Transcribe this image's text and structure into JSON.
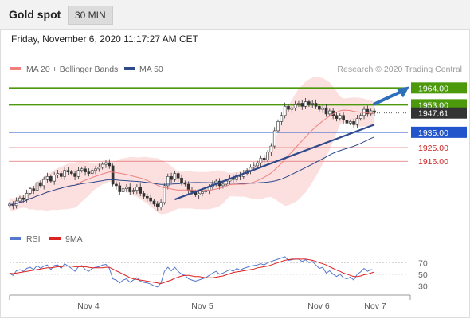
{
  "header": {
    "title": "Gold spot",
    "interval": "30 MIN"
  },
  "timestamp": "Friday, November 6, 2020 11:17:27 AM CET",
  "legend": {
    "ma20": {
      "label": "MA 20 + Bollinger Bands",
      "color": "#f08080"
    },
    "ma50": {
      "label": "MA 50",
      "color": "#2e4a8a"
    },
    "rsi": {
      "label": "RSI",
      "color": "#5577cc"
    },
    "rsi_ma": {
      "label": "9MA",
      "color": "#dd2222"
    }
  },
  "credit": "Research © 2020 Trading Central",
  "colors": {
    "resistance": "#4c9a0c",
    "pivot": "#2255cc",
    "support": "#e07070",
    "candle": "#333333",
    "band": "#fbd9d9",
    "current": "#333333"
  },
  "chart_data": [
    {
      "type": "candlestick",
      "title": "Gold spot",
      "x_ticks": [
        "Nov 4",
        "Nov 5",
        "Nov 6",
        "Nov 7"
      ],
      "ylim": [
        1878,
        1972
      ],
      "current_price": {
        "value": 1947.61,
        "label": "1947.61"
      },
      "levels": [
        {
          "value": 1964.0,
          "label": "1964.00",
          "kind": "resistance"
        },
        {
          "value": 1953.0,
          "label": "1953.00",
          "kind": "resistance"
        },
        {
          "value": 1935.0,
          "label": "1935.00",
          "kind": "pivot"
        },
        {
          "value": 1925.0,
          "label": "1925.00",
          "kind": "support"
        },
        {
          "value": 1916.0,
          "label": "1916.00",
          "kind": "support"
        }
      ],
      "close": [
        1888,
        1887,
        1890,
        1892,
        1891,
        1895,
        1898,
        1897,
        1902,
        1900,
        1904,
        1906,
        1903,
        1907,
        1908,
        1906,
        1910,
        1909,
        1908,
        1906,
        1910,
        1911,
        1909,
        1908,
        1910,
        1911,
        1912,
        1914,
        1915,
        1913,
        1901,
        1900,
        1896,
        1898,
        1899,
        1896,
        1897,
        1899,
        1895,
        1893,
        1892,
        1890,
        1888,
        1886,
        1889,
        1900,
        1906,
        1904,
        1908,
        1905,
        1902,
        1901,
        1897,
        1896,
        1894,
        1895,
        1896,
        1897,
        1899,
        1901,
        1903,
        1900,
        1901,
        1903,
        1905,
        1904,
        1907,
        1906,
        1908,
        1910,
        1912,
        1913,
        1915,
        1918,
        1917,
        1922,
        1926,
        1936,
        1942,
        1946,
        1952,
        1950,
        1951,
        1953,
        1954,
        1952,
        1955,
        1953,
        1954,
        1952,
        1950,
        1951,
        1947,
        1949,
        1946,
        1944,
        1946,
        1943,
        1941,
        1942,
        1940,
        1944,
        1946,
        1950,
        1947,
        1949,
        1948
      ]
    },
    {
      "type": "line",
      "title": "RSI",
      "x_ticks": [
        "Nov 4",
        "Nov 5",
        "Nov 6",
        "Nov 7"
      ],
      "yticks": [
        70,
        50,
        30
      ],
      "ylim": [
        25,
        80
      ],
      "series": [
        {
          "name": "RSI",
          "values": [
            52,
            48,
            56,
            58,
            55,
            60,
            62,
            58,
            65,
            60,
            64,
            66,
            58,
            65,
            66,
            60,
            68,
            64,
            60,
            55,
            63,
            65,
            58,
            55,
            60,
            62,
            63,
            66,
            67,
            60,
            42,
            40,
            35,
            40,
            42,
            36,
            40,
            44,
            38,
            36,
            35,
            33,
            30,
            28,
            35,
            55,
            62,
            56,
            62,
            55,
            50,
            48,
            42,
            40,
            38,
            40,
            42,
            44,
            48,
            52,
            55,
            50,
            52,
            55,
            58,
            55,
            60,
            57,
            60,
            62,
            64,
            65,
            66,
            68,
            66,
            70,
            72,
            74,
            76,
            78,
            80,
            74,
            75,
            76,
            76,
            72,
            75,
            70,
            72,
            66,
            60,
            62,
            52,
            56,
            50,
            46,
            50,
            44,
            42,
            45,
            40,
            50,
            54,
            60,
            55,
            58,
            57
          ]
        },
        {
          "name": "9MA",
          "values": [
            52,
            51,
            52,
            53,
            54,
            55,
            56,
            57,
            58,
            59,
            60,
            61,
            61,
            62,
            63,
            63,
            64,
            64,
            64,
            63,
            63,
            63,
            63,
            62,
            61,
            61,
            61,
            61,
            62,
            62,
            59,
            56,
            53,
            50,
            47,
            44,
            42,
            41,
            40,
            39,
            38,
            37,
            36,
            35,
            34,
            36,
            38,
            40,
            43,
            45,
            47,
            48,
            48,
            47,
            46,
            46,
            45,
            44,
            44,
            44,
            45,
            46,
            47,
            49,
            51,
            53,
            54,
            55,
            56,
            57,
            58,
            59,
            61,
            62,
            63,
            64,
            66,
            68,
            70,
            72,
            74,
            75,
            76,
            76,
            76,
            76,
            76,
            75,
            74,
            72,
            70,
            68,
            66,
            63,
            60,
            57,
            55,
            52,
            50,
            48,
            46,
            46,
            47,
            49,
            50,
            52,
            54
          ]
        }
      ]
    }
  ]
}
